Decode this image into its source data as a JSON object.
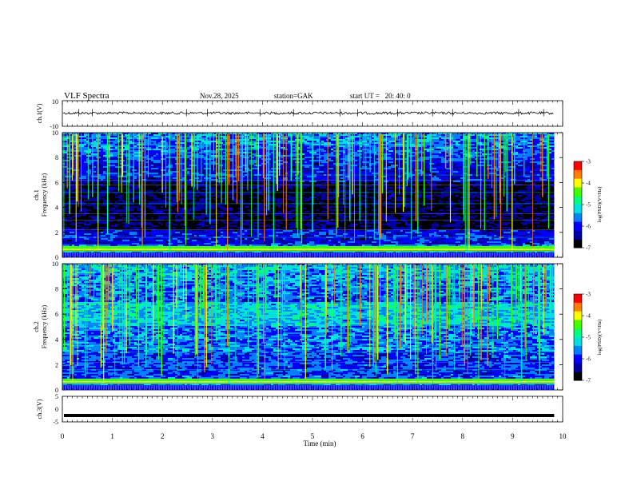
{
  "header": {
    "title": "VLF Spectra",
    "date": "Nov.28, 2025",
    "station": "station=GAK",
    "start_ut": "start UT =   20: 40: 0"
  },
  "chart_data": {
    "type": "heatmap",
    "x_axis": {
      "label": "Time (min)",
      "range": [
        0,
        10
      ],
      "ticks": [
        "0",
        "1",
        "2",
        "3",
        "4",
        "5",
        "6",
        "7",
        "8",
        "9",
        "10"
      ],
      "data_end": 9.83
    },
    "panels": [
      {
        "id": "ch1-waveform",
        "type": "line",
        "ylabel": "ch.1(V)",
        "yrange": [
          -10,
          10
        ],
        "yticks": [
          "10",
          "-10"
        ],
        "baseline_level": 0.3
      },
      {
        "id": "ch1-spectrogram",
        "type": "heatmap",
        "ylabel_channel": "ch.1",
        "ylabel": "Frequency (kHz)",
        "yrange": [
          0,
          10
        ],
        "yticks": [
          "0",
          "2",
          "4",
          "6",
          "8",
          "10"
        ]
      },
      {
        "id": "ch2-spectrogram",
        "type": "heatmap",
        "ylabel_channel": "ch.2",
        "ylabel": "Frequency (kHz)",
        "yrange": [
          0,
          10
        ],
        "yticks": [
          "0",
          "2",
          "4",
          "6",
          "8",
          "10"
        ]
      },
      {
        "id": "ch3-waveform",
        "type": "line",
        "ylabel": "ch.3(V)",
        "yrange": [
          -5,
          5
        ],
        "yticks": [
          "5",
          "0",
          "-5"
        ],
        "baseline_level": -2.5
      }
    ],
    "colorbar": {
      "label": "log(PSD)(V²/Hz)",
      "range": [
        -7,
        -3
      ],
      "ticks": [
        "-3",
        "-4",
        "-5",
        "-6",
        "-7"
      ],
      "colors": [
        "#000000",
        "#0000a0",
        "#0000ff",
        "#0080ff",
        "#00e0e0",
        "#00ff80",
        "#40ff00",
        "#ffff00",
        "#ff8000",
        "#ff0000"
      ]
    }
  }
}
